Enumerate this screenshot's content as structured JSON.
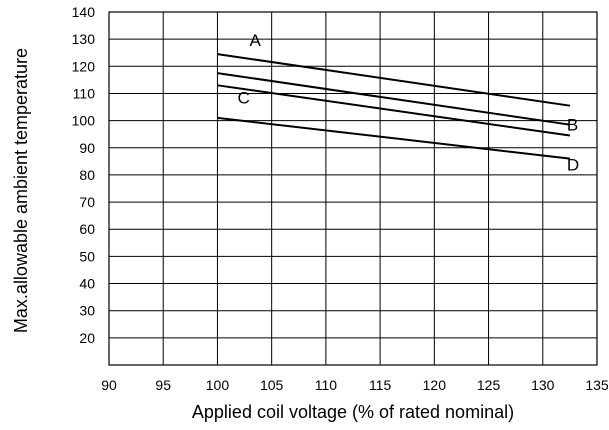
{
  "chart_data": {
    "type": "line",
    "title": "",
    "xlabel": "Applied coil voltage (% of rated nominal)",
    "ylabel": "Max.allowable ambient temperature",
    "xlim": [
      90,
      135
    ],
    "ylim": [
      10,
      140
    ],
    "x_ticks": [
      90,
      95,
      100,
      105,
      110,
      115,
      120,
      125,
      130,
      135
    ],
    "y_ticks": [
      20,
      30,
      40,
      50,
      60,
      70,
      80,
      90,
      100,
      110,
      120,
      130,
      140
    ],
    "grid": true,
    "line_color": "#000000",
    "series": [
      {
        "name": "A",
        "x": [
          100,
          132.5
        ],
        "y": [
          124.5,
          105.5
        ]
      },
      {
        "name": "B",
        "x": [
          100,
          132.5
        ],
        "y": [
          117.5,
          98.5
        ]
      },
      {
        "name": "C",
        "x": [
          100,
          132.5
        ],
        "y": [
          113,
          94.5
        ]
      },
      {
        "name": "D",
        "x": [
          100,
          132.5
        ],
        "y": [
          101,
          86
        ]
      }
    ]
  }
}
